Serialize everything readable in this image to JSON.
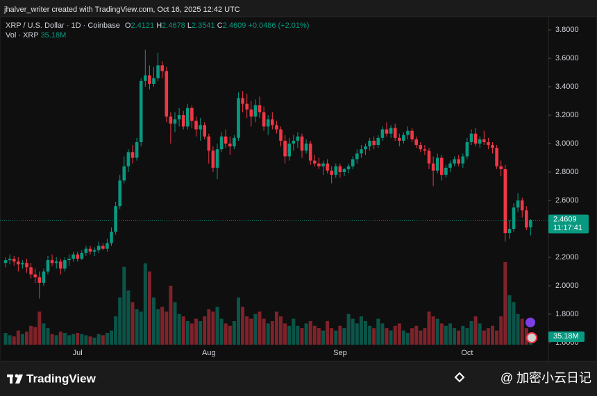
{
  "watermark_top": "jhalver_writer created with TradingView.com, Oct 16, 2025 12:42 UTC",
  "chart_data": {
    "type": "candlestick",
    "symbol": "XRP / U.S. Dollar · 1D · Coinbase",
    "legend_items": [
      {
        "key": "O",
        "value": "2.4121"
      },
      {
        "key": "H",
        "value": "2.4678"
      },
      {
        "key": "L",
        "value": "2.3541"
      },
      {
        "key": "C",
        "value": "2.4609"
      }
    ],
    "change": "+0.0486 (+2.01%)",
    "volume_title": "Vol · XRP",
    "volume_value": "35.18M",
    "up_color": "#089981",
    "down_color": "#f23645",
    "ylim": [
      1.473,
      3.893
    ],
    "yticks": [
      {
        "value": 3.8,
        "label": "3.8000"
      },
      {
        "value": 3.6,
        "label": "3.6000"
      },
      {
        "value": 3.4,
        "label": "3.4000"
      },
      {
        "value": 3.2,
        "label": "3.2000"
      },
      {
        "value": 3.0,
        "label": "3.0000"
      },
      {
        "value": 2.8,
        "label": "2.8000"
      },
      {
        "value": 2.6,
        "label": "2.6000"
      },
      {
        "value": 2.4,
        "label": "2.4000"
      },
      {
        "value": 2.2,
        "label": "2.2000"
      },
      {
        "value": 2.0,
        "label": "2.0000"
      },
      {
        "value": 1.8,
        "label": "1.8000"
      },
      {
        "value": 1.6,
        "label": "1.6000"
      }
    ],
    "grid": false,
    "volume_ylim": [
      0,
      1390
    ],
    "price_label": {
      "value": 2.4609,
      "label": "2.4609"
    },
    "countdown": "11:17:41",
    "volume_label": {
      "value": 35.18,
      "label": "35.18M"
    },
    "categories": [
      null,
      null,
      null,
      null,
      null,
      null,
      null,
      null,
      null,
      null,
      null,
      null,
      null,
      null,
      null,
      null,
      null,
      "Jul",
      null,
      null,
      null,
      null,
      null,
      null,
      null,
      null,
      null,
      null,
      null,
      null,
      null,
      null,
      null,
      null,
      null,
      null,
      null,
      null,
      null,
      null,
      null,
      null,
      null,
      null,
      null,
      null,
      null,
      null,
      "Aug",
      null,
      null,
      null,
      null,
      null,
      null,
      null,
      null,
      null,
      null,
      null,
      null,
      null,
      null,
      null,
      null,
      null,
      null,
      null,
      null,
      null,
      null,
      null,
      null,
      null,
      null,
      null,
      null,
      null,
      null,
      "Sep",
      null,
      null,
      null,
      null,
      null,
      null,
      null,
      null,
      null,
      null,
      null,
      null,
      null,
      null,
      null,
      null,
      null,
      null,
      null,
      null,
      null,
      null,
      null,
      null,
      null,
      null,
      null,
      null,
      null,
      "Oct",
      null,
      null,
      null,
      null,
      null,
      null,
      null,
      null,
      null,
      null,
      null,
      null,
      null,
      null,
      null
    ],
    "candles": [
      [
        2.16,
        2.2,
        2.13,
        2.18
      ],
      [
        2.18,
        2.22,
        2.15,
        2.19
      ],
      [
        2.19,
        2.21,
        2.14,
        2.17
      ],
      [
        2.17,
        2.2,
        2.1,
        2.15
      ],
      [
        2.15,
        2.18,
        2.12,
        2.16
      ],
      [
        2.16,
        2.19,
        2.09,
        2.13
      ],
      [
        2.13,
        2.16,
        2.05,
        2.08
      ],
      [
        2.08,
        2.12,
        2.02,
        2.06
      ],
      [
        2.06,
        2.1,
        1.91,
        2.02
      ],
      [
        2.02,
        2.12,
        2.0,
        2.1
      ],
      [
        2.1,
        2.21,
        2.08,
        2.18
      ],
      [
        2.18,
        2.22,
        2.14,
        2.16
      ],
      [
        2.16,
        2.2,
        2.12,
        2.17
      ],
      [
        2.17,
        2.19,
        2.08,
        2.12
      ],
      [
        2.12,
        2.2,
        2.1,
        2.18
      ],
      [
        2.18,
        2.22,
        2.14,
        2.19
      ],
      [
        2.19,
        2.24,
        2.17,
        2.22
      ],
      [
        2.22,
        2.24,
        2.17,
        2.19
      ],
      [
        2.19,
        2.25,
        2.18,
        2.23
      ],
      [
        2.23,
        2.28,
        2.21,
        2.26
      ],
      [
        2.26,
        2.28,
        2.22,
        2.24
      ],
      [
        2.24,
        2.27,
        2.21,
        2.25
      ],
      [
        2.25,
        2.31,
        2.23,
        2.28
      ],
      [
        2.28,
        2.3,
        2.25,
        2.26
      ],
      [
        2.26,
        2.33,
        2.24,
        2.3
      ],
      [
        2.3,
        2.41,
        2.28,
        2.38
      ],
      [
        2.38,
        2.59,
        2.36,
        2.56
      ],
      [
        2.56,
        2.78,
        2.54,
        2.74
      ],
      [
        2.74,
        2.91,
        2.72,
        2.84
      ],
      [
        2.84,
        2.96,
        2.8,
        2.94
      ],
      [
        2.94,
        2.99,
        2.86,
        2.9
      ],
      [
        2.9,
        3.04,
        2.88,
        3.01
      ],
      [
        3.01,
        3.46,
        2.98,
        3.44
      ],
      [
        3.44,
        3.66,
        3.4,
        3.48
      ],
      [
        3.48,
        3.55,
        3.38,
        3.42
      ],
      [
        3.42,
        3.54,
        3.4,
        3.46
      ],
      [
        3.46,
        3.64,
        3.44,
        3.55
      ],
      [
        3.55,
        3.58,
        3.46,
        3.51
      ],
      [
        3.51,
        3.54,
        3.15,
        3.19
      ],
      [
        3.19,
        3.22,
        3.0,
        3.14
      ],
      [
        3.14,
        3.22,
        3.08,
        3.17
      ],
      [
        3.17,
        3.25,
        3.12,
        3.2
      ],
      [
        3.2,
        3.23,
        3.1,
        3.12
      ],
      [
        3.12,
        3.28,
        3.1,
        3.25
      ],
      [
        3.25,
        3.27,
        3.11,
        3.16
      ],
      [
        3.16,
        3.19,
        3.05,
        3.1
      ],
      [
        3.1,
        3.18,
        3.02,
        3.13
      ],
      [
        3.13,
        3.15,
        3.03,
        3.05
      ],
      [
        3.05,
        3.07,
        2.86,
        2.95
      ],
      [
        2.95,
        2.98,
        2.8,
        2.83
      ],
      [
        2.83,
        3.0,
        2.75,
        2.96
      ],
      [
        2.96,
        3.08,
        2.94,
        3.05
      ],
      [
        3.05,
        3.1,
        2.97,
        3.0
      ],
      [
        3.0,
        3.05,
        2.92,
        2.98
      ],
      [
        2.98,
        3.06,
        2.96,
        3.04
      ],
      [
        3.04,
        3.36,
        3.02,
        3.32
      ],
      [
        3.32,
        3.37,
        3.22,
        3.28
      ],
      [
        3.28,
        3.35,
        3.18,
        3.24
      ],
      [
        3.24,
        3.3,
        3.12,
        3.19
      ],
      [
        3.19,
        3.31,
        3.15,
        3.27
      ],
      [
        3.27,
        3.33,
        3.18,
        3.22
      ],
      [
        3.22,
        3.26,
        3.09,
        3.12
      ],
      [
        3.12,
        3.2,
        3.06,
        3.17
      ],
      [
        3.17,
        3.22,
        3.1,
        3.13
      ],
      [
        3.13,
        3.16,
        3.07,
        3.1
      ],
      [
        3.1,
        3.12,
        2.98,
        3.02
      ],
      [
        3.02,
        3.06,
        2.86,
        2.91
      ],
      [
        2.91,
        3.04,
        2.88,
        3.0
      ],
      [
        3.0,
        3.06,
        2.95,
        3.02
      ],
      [
        3.02,
        3.08,
        2.97,
        3.05
      ],
      [
        3.05,
        3.07,
        2.9,
        2.95
      ],
      [
        2.95,
        3.03,
        2.93,
        3.0
      ],
      [
        3.0,
        3.02,
        2.85,
        2.88
      ],
      [
        2.88,
        2.92,
        2.84,
        2.86
      ],
      [
        2.86,
        2.9,
        2.82,
        2.84
      ],
      [
        2.84,
        2.88,
        2.78,
        2.86
      ],
      [
        2.86,
        2.89,
        2.79,
        2.81
      ],
      [
        2.81,
        2.84,
        2.72,
        2.78
      ],
      [
        2.78,
        2.86,
        2.76,
        2.84
      ],
      [
        2.84,
        2.86,
        2.76,
        2.8
      ],
      [
        2.8,
        2.83,
        2.77,
        2.82
      ],
      [
        2.82,
        2.86,
        2.79,
        2.84
      ],
      [
        2.84,
        2.91,
        2.82,
        2.89
      ],
      [
        2.89,
        2.96,
        2.86,
        2.93
      ],
      [
        2.93,
        2.99,
        2.9,
        2.96
      ],
      [
        2.96,
        3.0,
        2.92,
        2.98
      ],
      [
        2.98,
        3.04,
        2.95,
        3.02
      ],
      [
        3.02,
        3.05,
        2.96,
        2.99
      ],
      [
        2.99,
        3.06,
        2.97,
        3.04
      ],
      [
        3.04,
        3.12,
        3.02,
        3.1
      ],
      [
        3.1,
        3.15,
        3.05,
        3.07
      ],
      [
        3.07,
        3.13,
        3.04,
        3.11
      ],
      [
        3.11,
        3.14,
        3.02,
        3.04
      ],
      [
        3.04,
        3.07,
        2.98,
        3.02
      ],
      [
        3.02,
        3.08,
        3.0,
        3.06
      ],
      [
        3.06,
        3.12,
        3.03,
        3.09
      ],
      [
        3.09,
        3.11,
        3.01,
        3.03
      ],
      [
        3.03,
        3.05,
        2.97,
        2.99
      ],
      [
        2.99,
        3.01,
        2.94,
        2.96
      ],
      [
        2.96,
        2.99,
        2.92,
        2.95
      ],
      [
        2.95,
        2.97,
        2.82,
        2.86
      ],
      [
        2.86,
        2.91,
        2.7,
        2.81
      ],
      [
        2.81,
        2.93,
        2.79,
        2.9
      ],
      [
        2.9,
        2.92,
        2.74,
        2.78
      ],
      [
        2.78,
        2.85,
        2.76,
        2.83
      ],
      [
        2.83,
        2.88,
        2.8,
        2.86
      ],
      [
        2.86,
        2.91,
        2.84,
        2.89
      ],
      [
        2.89,
        2.92,
        2.84,
        2.86
      ],
      [
        2.86,
        2.93,
        2.83,
        2.91
      ],
      [
        2.91,
        3.04,
        2.89,
        3.01
      ],
      [
        3.01,
        3.1,
        2.99,
        3.07
      ],
      [
        3.07,
        3.11,
        2.98,
        3.0
      ],
      [
        3.0,
        3.05,
        2.97,
        3.03
      ],
      [
        3.03,
        3.09,
        2.99,
        3.01
      ],
      [
        3.01,
        3.04,
        2.96,
        2.99
      ],
      [
        2.99,
        3.01,
        2.93,
        2.97
      ],
      [
        2.97,
        2.99,
        2.82,
        2.84
      ],
      [
        2.84,
        2.88,
        2.77,
        2.82
      ],
      [
        2.82,
        2.85,
        2.31,
        2.37
      ],
      [
        2.37,
        2.46,
        2.33,
        2.4
      ],
      [
        2.4,
        2.58,
        2.38,
        2.55
      ],
      [
        2.55,
        2.65,
        2.52,
        2.6
      ],
      [
        2.6,
        2.62,
        2.48,
        2.53
      ],
      [
        2.53,
        2.56,
        2.39,
        2.41
      ],
      [
        2.4121,
        2.4678,
        2.3541,
        2.4609
      ]
    ],
    "volumes": [
      50,
      40,
      35,
      60,
      45,
      55,
      80,
      75,
      140,
      90,
      70,
      45,
      40,
      55,
      50,
      40,
      45,
      50,
      45,
      40,
      35,
      30,
      45,
      40,
      50,
      60,
      120,
      200,
      330,
      230,
      180,
      150,
      140,
      345,
      310,
      200,
      150,
      160,
      140,
      250,
      180,
      130,
      120,
      100,
      90,
      110,
      100,
      120,
      150,
      140,
      160,
      110,
      90,
      80,
      100,
      200,
      160,
      120,
      110,
      130,
      140,
      110,
      90,
      100,
      140,
      120,
      90,
      80,
      110,
      80,
      70,
      90,
      100,
      80,
      70,
      60,
      100,
      70,
      60,
      80,
      70,
      130,
      110,
      90,
      120,
      100,
      80,
      70,
      110,
      90,
      70,
      60,
      80,
      90,
      60,
      50,
      70,
      80,
      60,
      70,
      140,
      120,
      110,
      90,
      80,
      90,
      70,
      60,
      80,
      70,
      100,
      120,
      90,
      60,
      70,
      80,
      60,
      120,
      350,
      210,
      180,
      130,
      110,
      70,
      35.18
    ]
  },
  "footer": {
    "brand": "TradingView",
    "credit": "@ 加密小云日记"
  }
}
